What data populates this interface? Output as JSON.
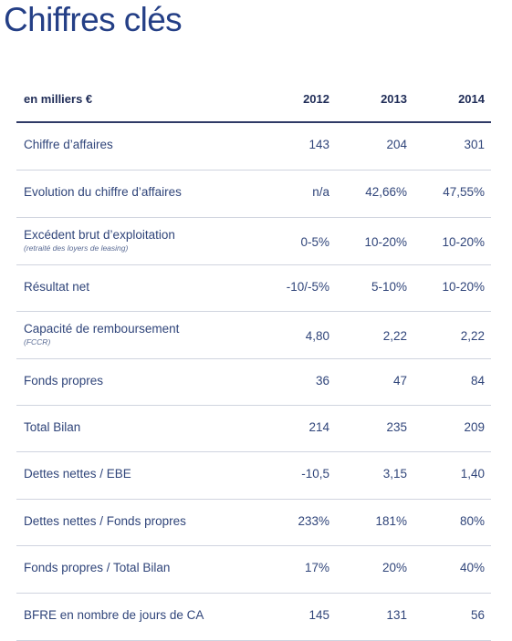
{
  "title": "Chiffres clés",
  "header": {
    "unit": "en milliers €",
    "years": [
      "2012",
      "2013",
      "2014"
    ]
  },
  "rows": [
    {
      "label": "Chiffre d’affaires",
      "sub": "",
      "values": [
        "143",
        "204",
        "301"
      ]
    },
    {
      "label": "Evolution du chiffre d’affaires",
      "sub": "",
      "values": [
        "n/a",
        "42,66%",
        "47,55%"
      ]
    },
    {
      "label": "Excédent brut d’exploitation",
      "sub": "(retraité des loyers de leasing)",
      "values": [
        "0-5%",
        "10-20%",
        "10-20%"
      ]
    },
    {
      "label": "Résultat net",
      "sub": "",
      "values": [
        "-10/-5%",
        "5-10%",
        "10-20%"
      ]
    },
    {
      "label": "Capacité de remboursement",
      "sub": "(FCCR)",
      "values": [
        "4,80",
        "2,22",
        "2,22"
      ]
    },
    {
      "label": "Fonds propres",
      "sub": "",
      "values": [
        "36",
        "47",
        "84"
      ]
    },
    {
      "label": "Total Bilan",
      "sub": "",
      "values": [
        "214",
        "235",
        "209"
      ]
    },
    {
      "label": "Dettes nettes / EBE",
      "sub": "",
      "values": [
        "-10,5",
        "3,15",
        "1,40"
      ]
    },
    {
      "label": "Dettes nettes / Fonds propres",
      "sub": "",
      "values": [
        "233%",
        "181%",
        "80%"
      ]
    },
    {
      "label": "Fonds propres / Total Bilan",
      "sub": "",
      "values": [
        "17%",
        "20%",
        "40%"
      ]
    },
    {
      "label": "BFRE en nombre de jours de CA",
      "sub": "",
      "values": [
        "145",
        "131",
        "56"
      ]
    }
  ]
}
